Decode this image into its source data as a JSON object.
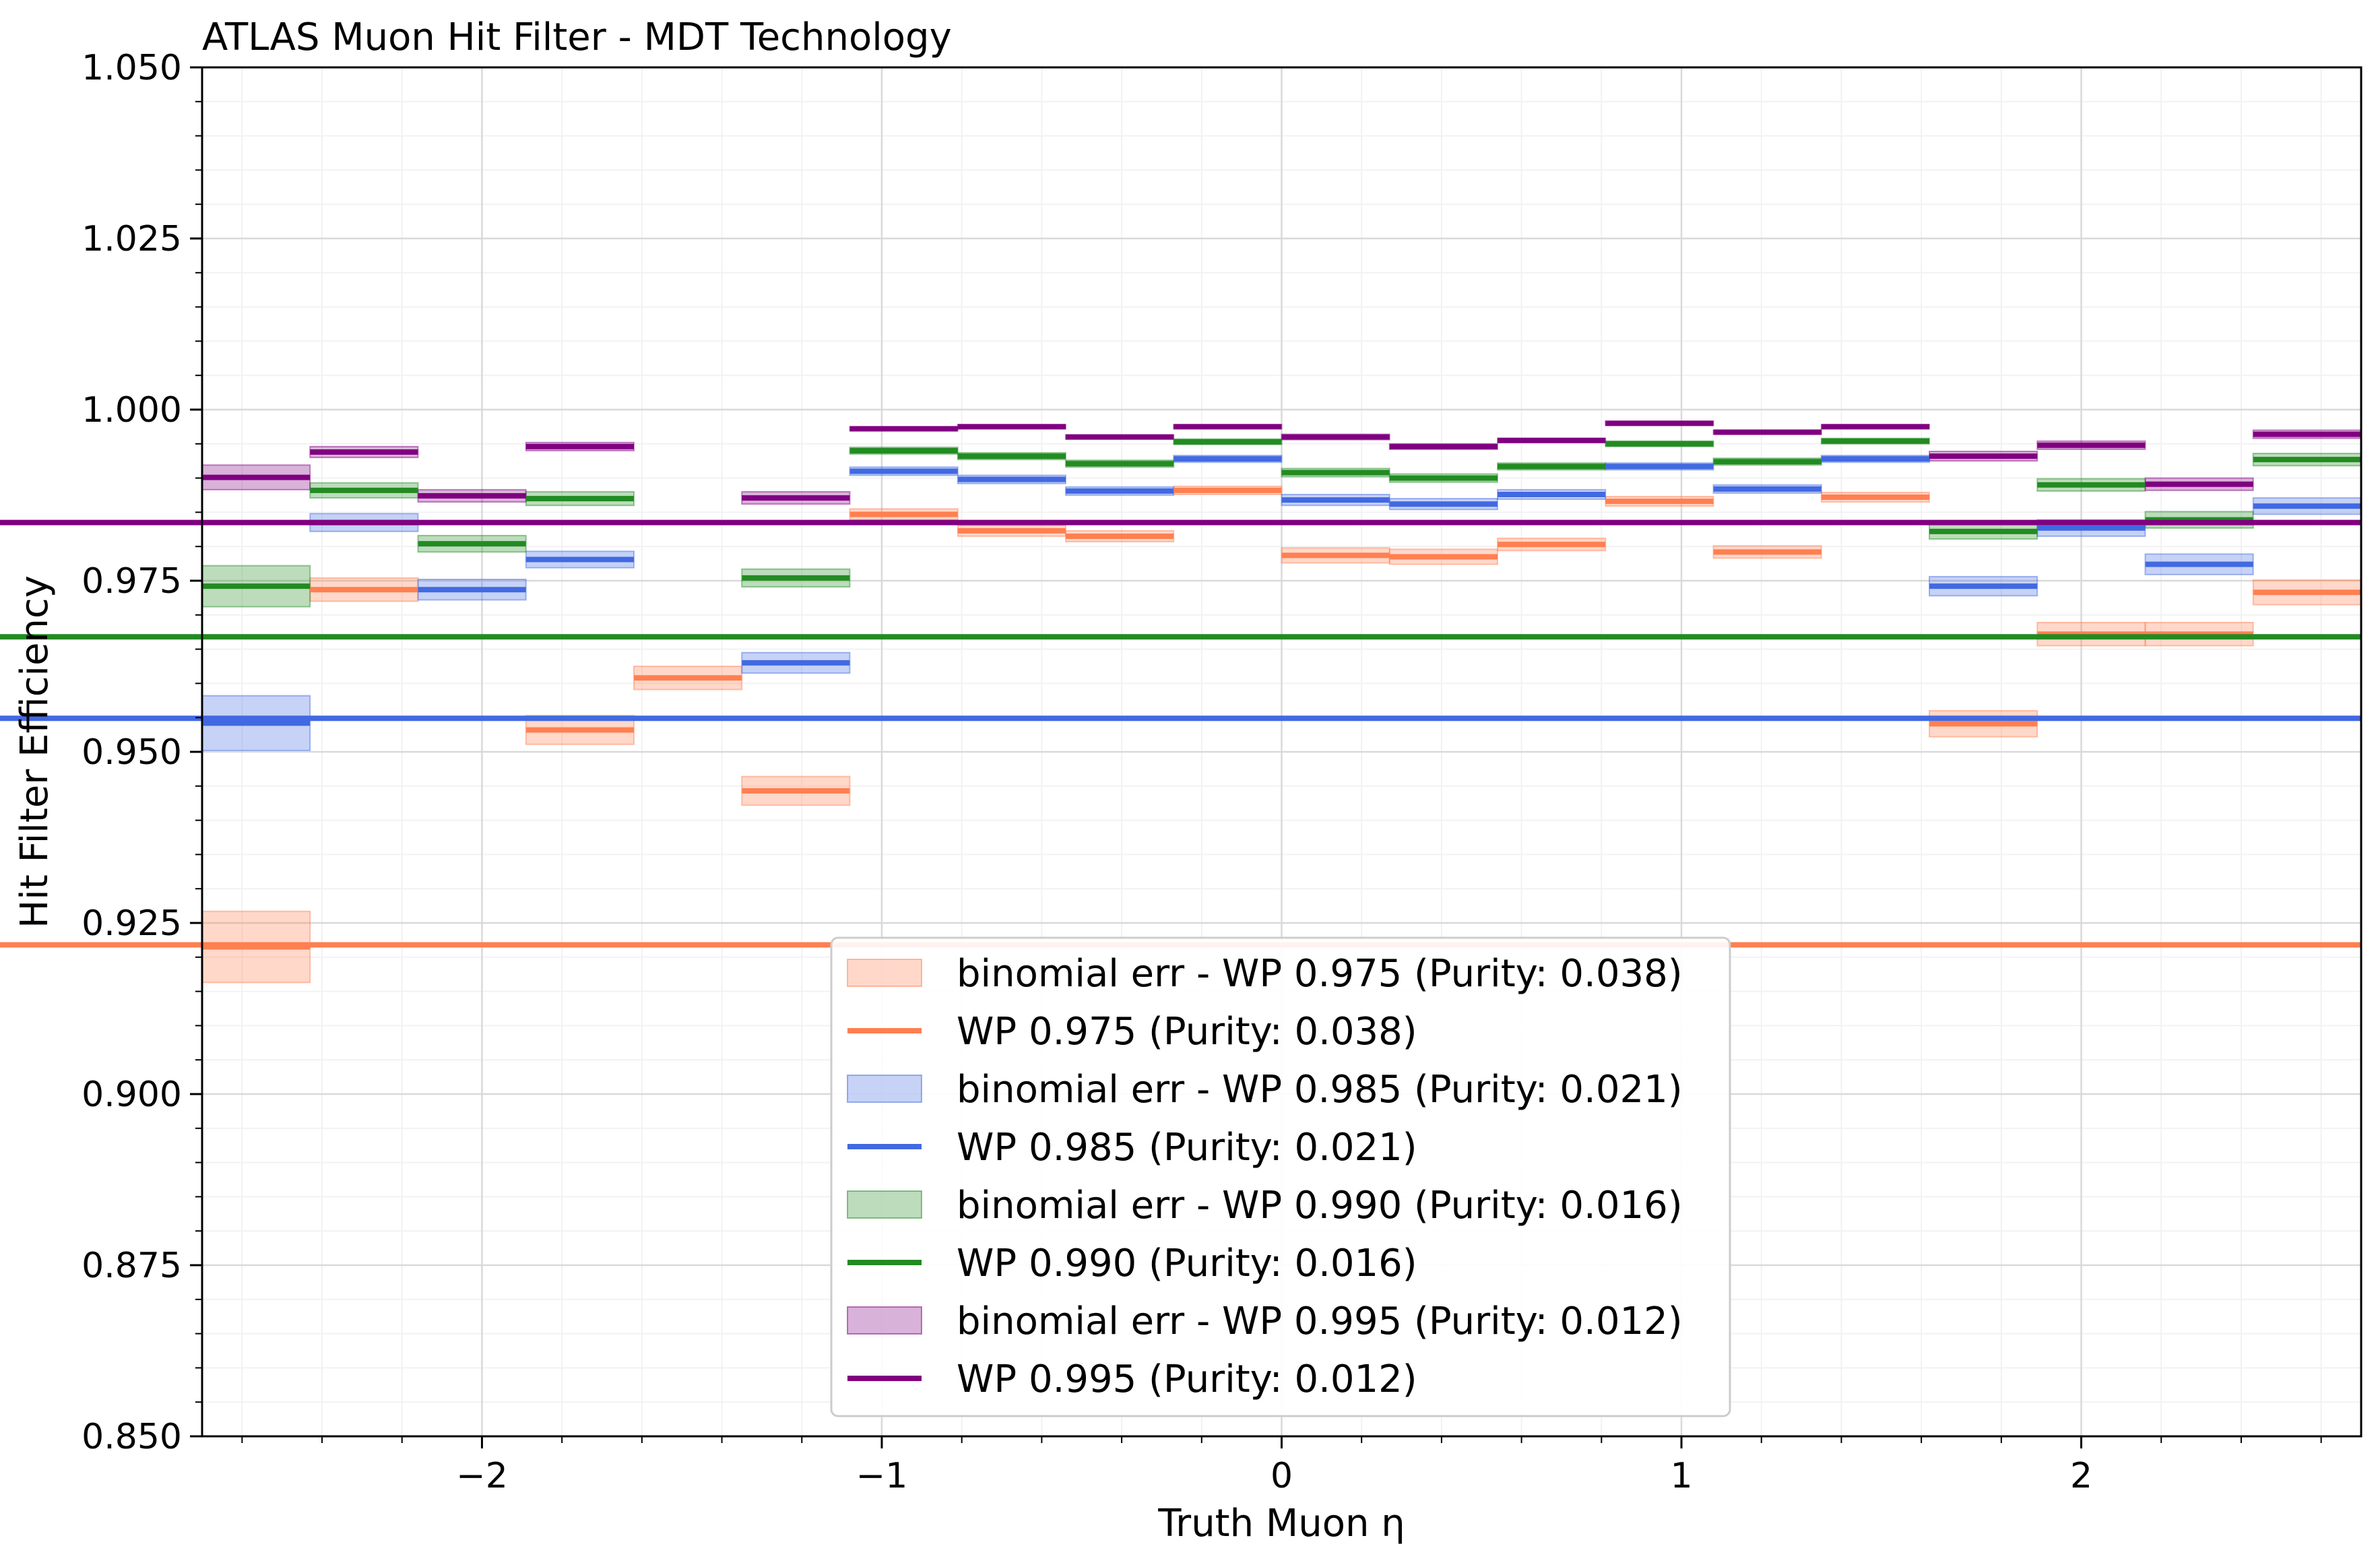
{
  "chart_data": {
    "type": "line",
    "title": "ATLAS Muon Hit Filter - MDT Technology",
    "xlabel": "Truth Muon η",
    "ylabel": "Hit Filter Efficiency",
    "xlim": [
      -2.7,
      2.7
    ],
    "ylim": [
      0.85,
      1.05
    ],
    "xticks": [
      -2,
      -1,
      0,
      1,
      2
    ],
    "xtick_labels": [
      "−2",
      "−1",
      "0",
      "1",
      "2"
    ],
    "yticks": [
      0.85,
      0.875,
      0.9,
      0.925,
      0.95,
      0.975,
      1.0,
      1.025,
      1.05
    ],
    "ytick_labels": [
      "0.850",
      "0.875",
      "0.900",
      "0.925",
      "0.950",
      "0.975",
      "1.000",
      "1.025",
      "1.050"
    ],
    "grid": true,
    "legend_position": "lower-center",
    "bin_edges": [
      -2.7,
      -2.43,
      -2.16,
      -1.89,
      -1.62,
      -1.35,
      -1.08,
      -0.81,
      -0.54,
      -0.27,
      0.0,
      0.27,
      0.54,
      0.81,
      1.08,
      1.35,
      1.62,
      1.89,
      2.16,
      2.43,
      2.7
    ],
    "series": [
      {
        "name": "WP 0.975 (Purity: 0.038)",
        "band_name": "binomial err - WP 0.975 (Purity: 0.038)",
        "color": "#FF7F50",
        "values": [
          0.9215,
          0.9737,
          null,
          0.9532,
          0.9608,
          0.9443,
          0.9847,
          0.9823,
          0.9815,
          0.9882,
          0.9787,
          0.9785,
          0.9803,
          0.9866,
          0.9792,
          0.9872,
          0.9541,
          0.9672,
          0.9672,
          0.9733,
          0.9218
        ],
        "errors": [
          0.0052,
          0.0017,
          null,
          0.0021,
          0.0017,
          0.0021,
          0.0008,
          0.0008,
          0.0008,
          0.0006,
          0.0011,
          0.0011,
          0.0009,
          0.0007,
          0.0009,
          0.0007,
          0.0019,
          0.0017,
          0.0017,
          0.0018,
          0.0055
        ]
      },
      {
        "name": "WP 0.985 (Purity: 0.021)",
        "band_name": "binomial err - WP 0.985 (Purity: 0.021)",
        "color": "#4169E1",
        "values": [
          0.9542,
          0.9835,
          0.9737,
          0.9781,
          null,
          0.963,
          0.991,
          0.9898,
          0.9881,
          0.9928,
          0.9868,
          0.9862,
          0.9876,
          0.9917,
          0.9884,
          0.9928,
          0.9742,
          0.9827,
          0.9774,
          0.9859,
          0.9549
        ],
        "errors": [
          0.004,
          0.0013,
          0.0015,
          0.0012,
          null,
          0.0015,
          0.0006,
          0.0006,
          0.0006,
          0.0005,
          0.0008,
          0.0008,
          0.0007,
          0.0005,
          0.0006,
          0.0005,
          0.0014,
          0.0012,
          0.0015,
          0.0012,
          0.0042
        ]
      },
      {
        "name": "WP 0.990 (Purity: 0.016)",
        "band_name": "binomial err - WP 0.990 (Purity: 0.016)",
        "color": "#228B22",
        "values": [
          0.9742,
          0.9882,
          0.9804,
          0.987,
          null,
          0.9754,
          0.994,
          0.9932,
          0.9921,
          0.9953,
          0.9908,
          0.99,
          0.9917,
          0.995,
          0.9924,
          0.9954,
          0.9822,
          0.989,
          0.9839,
          0.9927,
          0.9668
        ],
        "errors": [
          0.003,
          0.0011,
          0.0012,
          0.001,
          null,
          0.0013,
          0.0005,
          0.0005,
          0.0005,
          0.0004,
          0.0006,
          0.0006,
          0.0005,
          0.0004,
          0.0005,
          0.0004,
          0.0011,
          0.0009,
          0.0012,
          0.0009,
          0.0036
        ]
      },
      {
        "name": "WP 0.995 (Purity: 0.012)",
        "band_name": "binomial err - WP 0.995 (Purity: 0.012)",
        "color": "#800080",
        "values": [
          0.9901,
          0.9938,
          0.9874,
          0.9946,
          null,
          0.9871,
          0.9972,
          0.9975,
          0.996,
          0.9975,
          0.996,
          0.9946,
          0.9955,
          0.998,
          0.9967,
          0.9975,
          0.9932,
          0.9948,
          0.9891,
          0.9964,
          0.9835
        ],
        "errors": [
          0.0018,
          0.0008,
          0.0009,
          0.0006,
          null,
          0.0009,
          0.0003,
          0.0003,
          0.0003,
          0.0003,
          0.0004,
          0.0004,
          0.0003,
          0.0003,
          0.0003,
          0.0003,
          0.0007,
          0.0006,
          0.0009,
          0.0006,
          0.0026
        ]
      }
    ]
  }
}
